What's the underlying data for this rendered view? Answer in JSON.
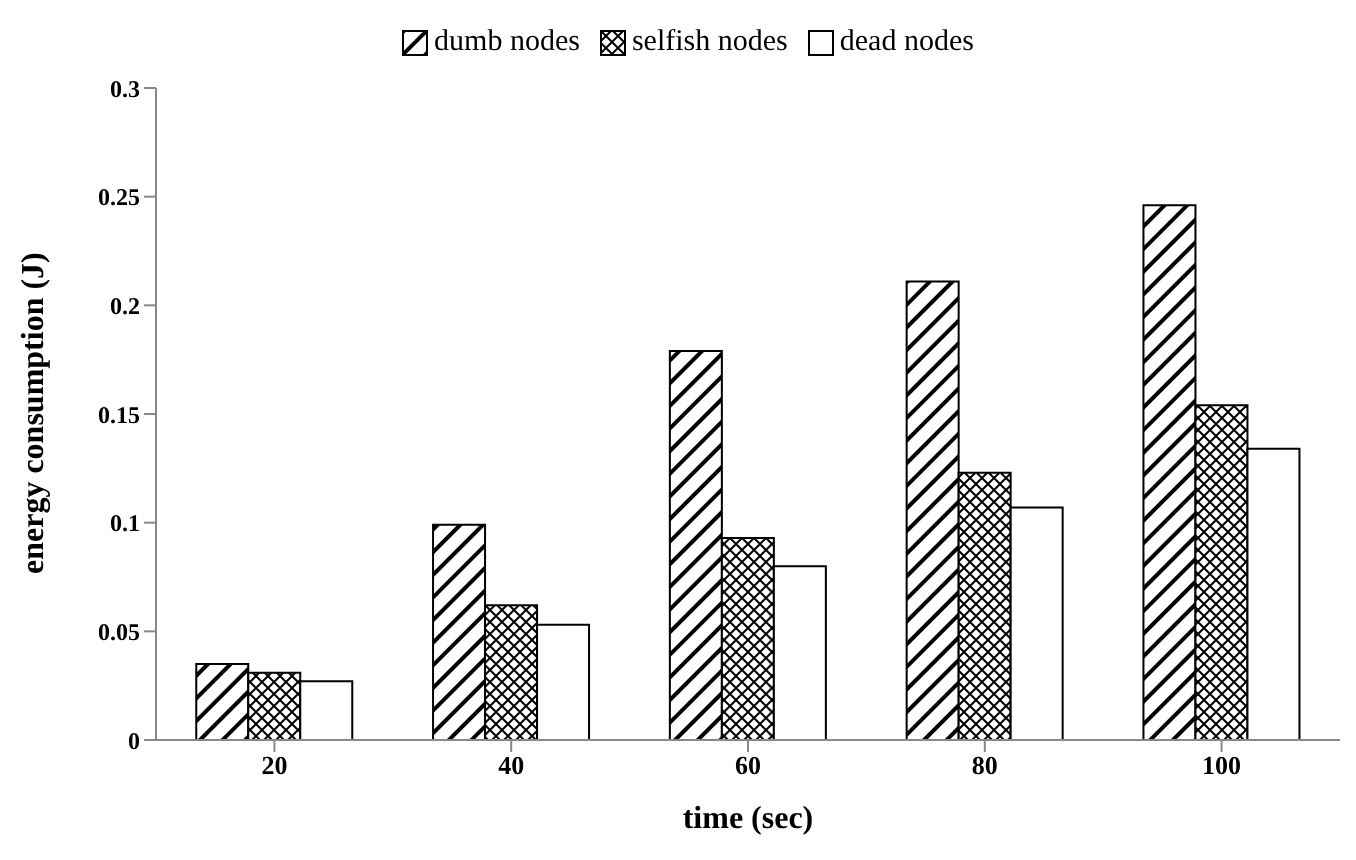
{
  "chart_data": {
    "type": "bar",
    "xlabel": "time (sec)",
    "ylabel": "energy consumption (J)",
    "categories": [
      "20",
      "40",
      "60",
      "80",
      "100"
    ],
    "series": [
      {
        "name": "dumb nodes",
        "color": "#000000",
        "values": [
          0.035,
          0.099,
          0.179,
          0.211,
          0.246
        ]
      },
      {
        "name": "selfish nodes",
        "color": "#000000",
        "values": [
          0.031,
          0.062,
          0.093,
          0.123,
          0.154
        ]
      },
      {
        "name": "dead nodes",
        "color": "#000000",
        "values": [
          0.027,
          0.053,
          0.08,
          0.107,
          0.134
        ]
      }
    ],
    "ylim": [
      0,
      0.3
    ],
    "yticks": [
      0,
      0.05,
      0.1,
      0.15,
      0.2,
      0.25,
      0.3
    ],
    "legend": "top",
    "grid": false
  }
}
